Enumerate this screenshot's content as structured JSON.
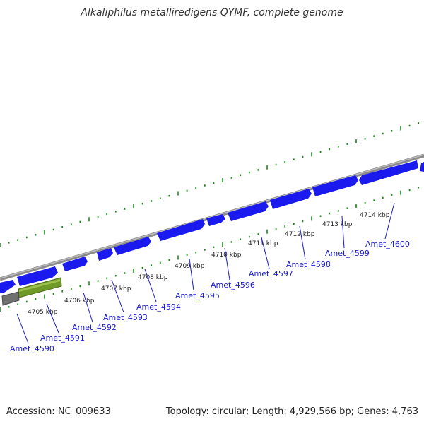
{
  "title": "Alkaliphilus metalliredigens QYMF, complete genome",
  "footer": {
    "accession": "Accession: NC_009633",
    "topology": "Topology: circular; Length: 4,929,566 bp; Genes: 4,763"
  },
  "colors": {
    "gene": "#1a1aee",
    "gene_label": "#1a1acd",
    "backbone": "#8a8a8a",
    "tick": "#1a8a1a",
    "feature_green": "#6f9a28",
    "feature_grey": "#707070"
  },
  "ticks": [
    "4705 kbp",
    "4706 kbp",
    "4707 kbp",
    "4708 kbp",
    "4709 kbp",
    "4710 kbp",
    "4711 kbp",
    "4712 kbp",
    "4713 kbp",
    "4714 kbp"
  ],
  "genes": [
    "Amet_4590",
    "Amet_4591",
    "Amet_4592",
    "Amet_4593",
    "Amet_4594",
    "Amet_4595",
    "Amet_4596",
    "Amet_4597",
    "Amet_4598",
    "Amet_4599",
    "Amet_4600"
  ]
}
